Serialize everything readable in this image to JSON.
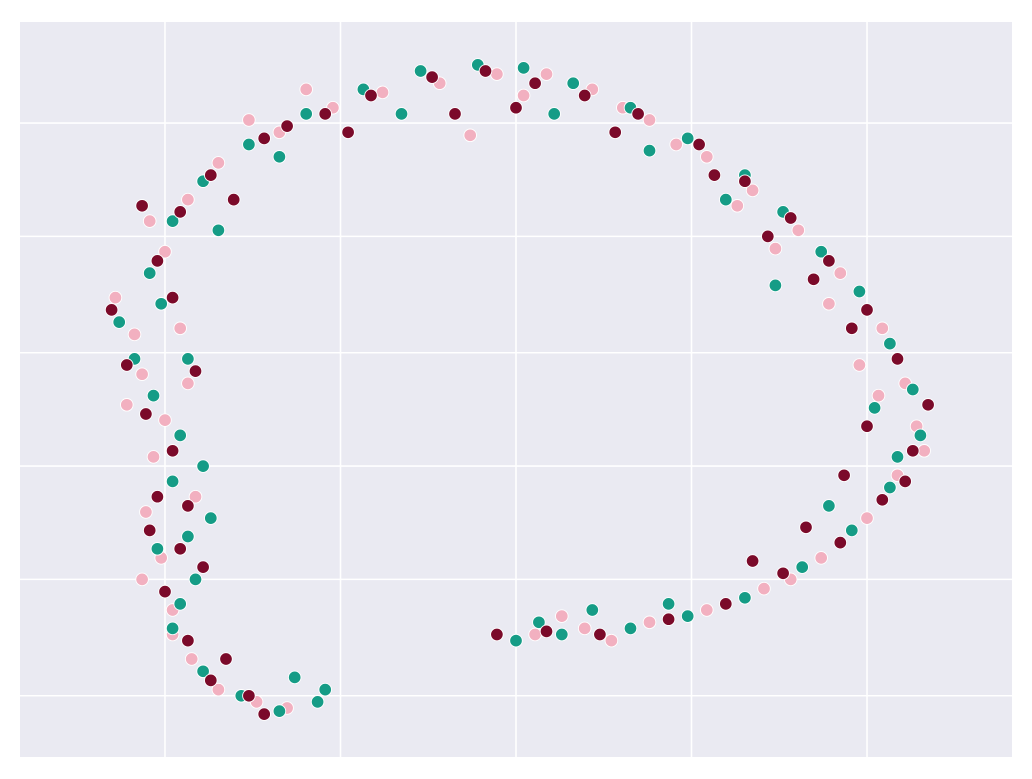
{
  "chart_data": {
    "type": "scatter",
    "title": "",
    "xlabel": "",
    "ylabel": "",
    "xlim": [
      -1.3,
      1.3
    ],
    "ylim": [
      -1.2,
      1.2
    ],
    "xticks": [
      -0.92,
      -0.46,
      0,
      0.46,
      0.92
    ],
    "yticks": [
      -1.0,
      -0.62,
      -0.25,
      0.12,
      0.5,
      0.87
    ],
    "grid": true,
    "legend": "none",
    "colors": {
      "background": "#EAEAF2",
      "grid": "#FFFFFF",
      "point_edge": "#FFFFFF"
    },
    "series": [
      {
        "color": "#F2B0C0",
        "points": [
          [
            -0.98,
            0.05
          ],
          [
            -1.02,
            -0.05
          ],
          [
            -0.95,
            -0.22
          ],
          [
            -0.97,
            -0.4
          ],
          [
            -0.93,
            -0.55
          ],
          [
            -0.9,
            -0.72
          ],
          [
            -0.85,
            -0.88
          ],
          [
            -0.78,
            -0.98
          ],
          [
            -0.68,
            -1.02
          ],
          [
            -0.6,
            -1.04
          ],
          [
            -0.92,
            0.45
          ],
          [
            -0.86,
            0.62
          ],
          [
            -0.78,
            0.74
          ],
          [
            -0.62,
            0.84
          ],
          [
            -0.48,
            0.92
          ],
          [
            -0.35,
            0.97
          ],
          [
            -0.2,
            1.0
          ],
          [
            -0.05,
            1.03
          ],
          [
            0.08,
            1.03
          ],
          [
            0.2,
            0.98
          ],
          [
            0.35,
            0.88
          ],
          [
            0.5,
            0.76
          ],
          [
            0.62,
            0.65
          ],
          [
            0.74,
            0.52
          ],
          [
            0.85,
            0.38
          ],
          [
            0.96,
            0.2
          ],
          [
            1.02,
            0.02
          ],
          [
            1.05,
            -0.12
          ],
          [
            1.0,
            -0.28
          ],
          [
            0.92,
            -0.42
          ],
          [
            0.8,
            -0.55
          ],
          [
            0.65,
            -0.65
          ],
          [
            0.5,
            -0.72
          ],
          [
            0.35,
            -0.76
          ],
          [
            0.18,
            -0.78
          ],
          [
            0.05,
            -0.8
          ],
          [
            -0.12,
            0.83
          ],
          [
            0.28,
            0.92
          ],
          [
            0.58,
            0.6
          ],
          [
            0.9,
            0.08
          ],
          [
            -1.05,
            0.3
          ],
          [
            -0.88,
            0.2
          ],
          [
            -0.92,
            -0.1
          ],
          [
            -0.84,
            -0.35
          ],
          [
            -0.98,
            -0.62
          ],
          [
            0.72,
            -0.62
          ],
          [
            1.07,
            -0.2
          ],
          [
            0.42,
            0.8
          ],
          [
            -0.55,
            0.98
          ],
          [
            0.02,
            0.96
          ],
          [
            -0.7,
            0.88
          ],
          [
            -0.96,
            0.55
          ],
          [
            -0.9,
            -0.8
          ],
          [
            0.25,
            -0.82
          ],
          [
            0.12,
            -0.74
          ],
          [
            0.95,
            -0.02
          ],
          [
            0.68,
            0.46
          ],
          [
            0.82,
            0.28
          ],
          [
            -1.0,
            0.18
          ],
          [
            -0.86,
            0.02
          ]
        ]
      },
      {
        "color": "#159C86",
        "points": [
          [
            -1.0,
            0.1
          ],
          [
            -0.95,
            -0.02
          ],
          [
            -0.88,
            -0.15
          ],
          [
            -0.9,
            -0.3
          ],
          [
            -0.86,
            -0.48
          ],
          [
            -0.84,
            -0.62
          ],
          [
            -0.9,
            -0.78
          ],
          [
            -0.82,
            -0.92
          ],
          [
            -0.72,
            -1.0
          ],
          [
            -0.62,
            -1.05
          ],
          [
            -0.52,
            -1.02
          ],
          [
            -0.5,
            -0.98
          ],
          [
            -0.96,
            0.38
          ],
          [
            -0.9,
            0.55
          ],
          [
            -0.82,
            0.68
          ],
          [
            -0.7,
            0.8
          ],
          [
            -0.55,
            0.9
          ],
          [
            -0.4,
            0.98
          ],
          [
            -0.25,
            1.04
          ],
          [
            -0.1,
            1.06
          ],
          [
            0.02,
            1.05
          ],
          [
            0.15,
            1.0
          ],
          [
            0.3,
            0.92
          ],
          [
            0.45,
            0.82
          ],
          [
            0.6,
            0.7
          ],
          [
            0.7,
            0.58
          ],
          [
            0.8,
            0.45
          ],
          [
            0.9,
            0.32
          ],
          [
            0.98,
            0.15
          ],
          [
            1.04,
            0.0
          ],
          [
            1.06,
            -0.15
          ],
          [
            0.98,
            -0.32
          ],
          [
            0.88,
            -0.46
          ],
          [
            0.75,
            -0.58
          ],
          [
            0.6,
            -0.68
          ],
          [
            0.45,
            -0.74
          ],
          [
            0.3,
            -0.78
          ],
          [
            0.12,
            -0.8
          ],
          [
            0.0,
            -0.82
          ],
          [
            0.06,
            -0.76
          ],
          [
            -1.04,
            0.22
          ],
          [
            -0.93,
            0.28
          ],
          [
            -0.86,
            0.1
          ],
          [
            -0.82,
            -0.25
          ],
          [
            -0.8,
            -0.42
          ],
          [
            -0.94,
            -0.52
          ],
          [
            -0.88,
            -0.7
          ],
          [
            0.55,
            0.62
          ],
          [
            0.68,
            0.34
          ],
          [
            0.94,
            -0.06
          ],
          [
            1.0,
            -0.22
          ],
          [
            0.82,
            -0.38
          ],
          [
            0.4,
            -0.7
          ],
          [
            0.2,
            -0.72
          ],
          [
            -0.3,
            0.9
          ],
          [
            0.1,
            0.9
          ],
          [
            0.35,
            0.78
          ],
          [
            -0.62,
            0.76
          ],
          [
            -0.78,
            0.52
          ],
          [
            -0.58,
            -0.94
          ]
        ]
      },
      {
        "color": "#7B0A2A",
        "points": [
          [
            -1.02,
            0.08
          ],
          [
            -0.97,
            -0.08
          ],
          [
            -0.9,
            -0.2
          ],
          [
            -0.94,
            -0.35
          ],
          [
            -0.88,
            -0.52
          ],
          [
            -0.92,
            -0.66
          ],
          [
            -0.86,
            -0.82
          ],
          [
            -0.8,
            -0.95
          ],
          [
            -0.7,
            -1.0
          ],
          [
            -0.66,
            -1.06
          ],
          [
            -0.94,
            0.42
          ],
          [
            -0.88,
            0.58
          ],
          [
            -0.8,
            0.7
          ],
          [
            -0.66,
            0.82
          ],
          [
            -0.5,
            0.9
          ],
          [
            -0.38,
            0.96
          ],
          [
            -0.22,
            1.02
          ],
          [
            -0.08,
            1.04
          ],
          [
            0.05,
            1.0
          ],
          [
            0.18,
            0.96
          ],
          [
            0.32,
            0.9
          ],
          [
            0.48,
            0.8
          ],
          [
            0.6,
            0.68
          ],
          [
            0.72,
            0.56
          ],
          [
            0.82,
            0.42
          ],
          [
            0.92,
            0.26
          ],
          [
            1.0,
            0.1
          ],
          [
            1.08,
            -0.05
          ],
          [
            1.04,
            -0.2
          ],
          [
            0.96,
            -0.36
          ],
          [
            0.85,
            -0.5
          ],
          [
            0.7,
            -0.6
          ],
          [
            0.55,
            -0.7
          ],
          [
            0.4,
            -0.75
          ],
          [
            0.22,
            -0.8
          ],
          [
            0.08,
            -0.79
          ],
          [
            -0.05,
            -0.8
          ],
          [
            -0.16,
            0.9
          ],
          [
            0.0,
            0.92
          ],
          [
            0.26,
            0.84
          ],
          [
            0.52,
            0.7
          ],
          [
            0.66,
            0.5
          ],
          [
            0.78,
            0.36
          ],
          [
            0.88,
            0.2
          ],
          [
            0.92,
            -0.12
          ],
          [
            0.86,
            -0.28
          ],
          [
            0.76,
            -0.45
          ],
          [
            0.62,
            -0.56
          ],
          [
            -1.06,
            0.26
          ],
          [
            -0.9,
            0.3
          ],
          [
            -0.84,
            0.06
          ],
          [
            -0.86,
            -0.38
          ],
          [
            -0.82,
            -0.58
          ],
          [
            -0.96,
            -0.46
          ],
          [
            -0.76,
            -0.88
          ],
          [
            -0.6,
            0.86
          ],
          [
            -0.44,
            0.84
          ],
          [
            -0.74,
            0.62
          ],
          [
            -0.98,
            0.6
          ],
          [
            1.02,
            -0.3
          ]
        ]
      }
    ]
  }
}
